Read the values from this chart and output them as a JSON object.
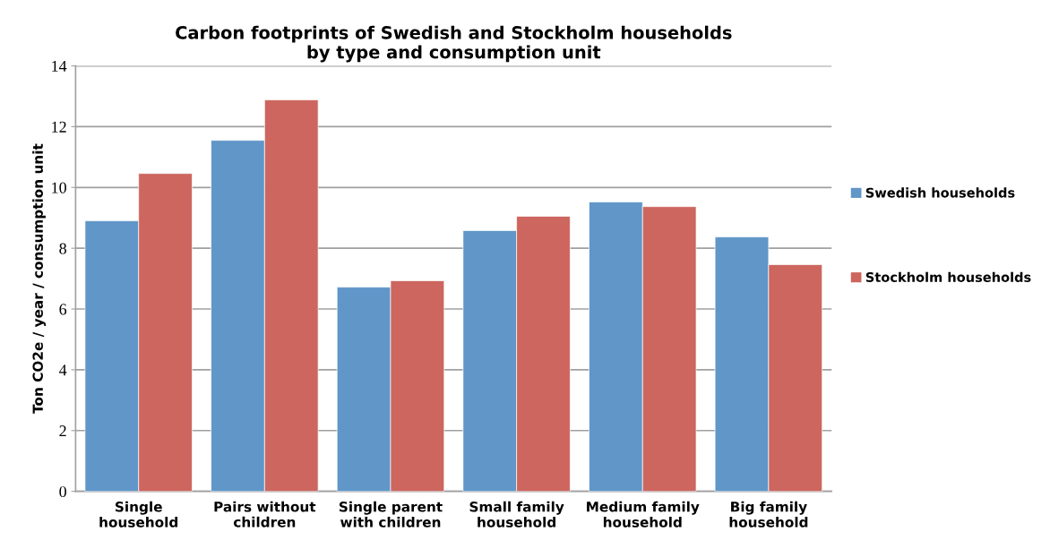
{
  "chart_data": {
    "type": "bar",
    "title": "Carbon footprints of Swedish and Stockholm households\nby type and consumption unit",
    "ylabel": "Ton CO2e / year / consumption unit",
    "categories": [
      "Single\nhousehold",
      "Pairs without\nchildren",
      "Single parent\nwith children",
      "Small family\nhousehold",
      "Medium family\nhousehold",
      "Big family\nhousehold"
    ],
    "series": [
      {
        "name": "Swedish households",
        "color": "#6096c8",
        "values": [
          8.9,
          11.55,
          6.72,
          8.58,
          9.52,
          8.37
        ]
      },
      {
        "name": "Stockholm households",
        "color": "#cc665f",
        "values": [
          10.46,
          12.88,
          6.93,
          9.05,
          9.37,
          7.46
        ]
      }
    ],
    "ylim": [
      0,
      14
    ],
    "yticks": [
      0,
      2,
      4,
      6,
      8,
      10,
      12,
      14
    ],
    "grid": "y",
    "legend": "right"
  }
}
